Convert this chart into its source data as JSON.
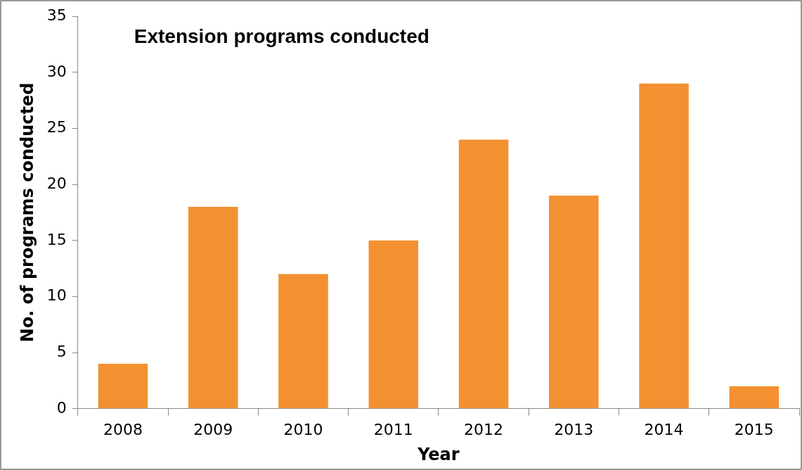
{
  "chart_data": {
    "type": "bar",
    "title": "Extension programs conducted",
    "xlabel": "Year",
    "ylabel": "No. of programs conducted",
    "categories": [
      "2008",
      "2009",
      "2010",
      "2011",
      "2012",
      "2013",
      "2014",
      "2015"
    ],
    "values": [
      4,
      18,
      12,
      15,
      24,
      19,
      29,
      2
    ],
    "color": "#f39130",
    "ylim": [
      0,
      35
    ],
    "yticks": [
      0,
      5,
      10,
      15,
      20,
      25,
      30,
      35
    ],
    "grid": false,
    "legend": false
  }
}
